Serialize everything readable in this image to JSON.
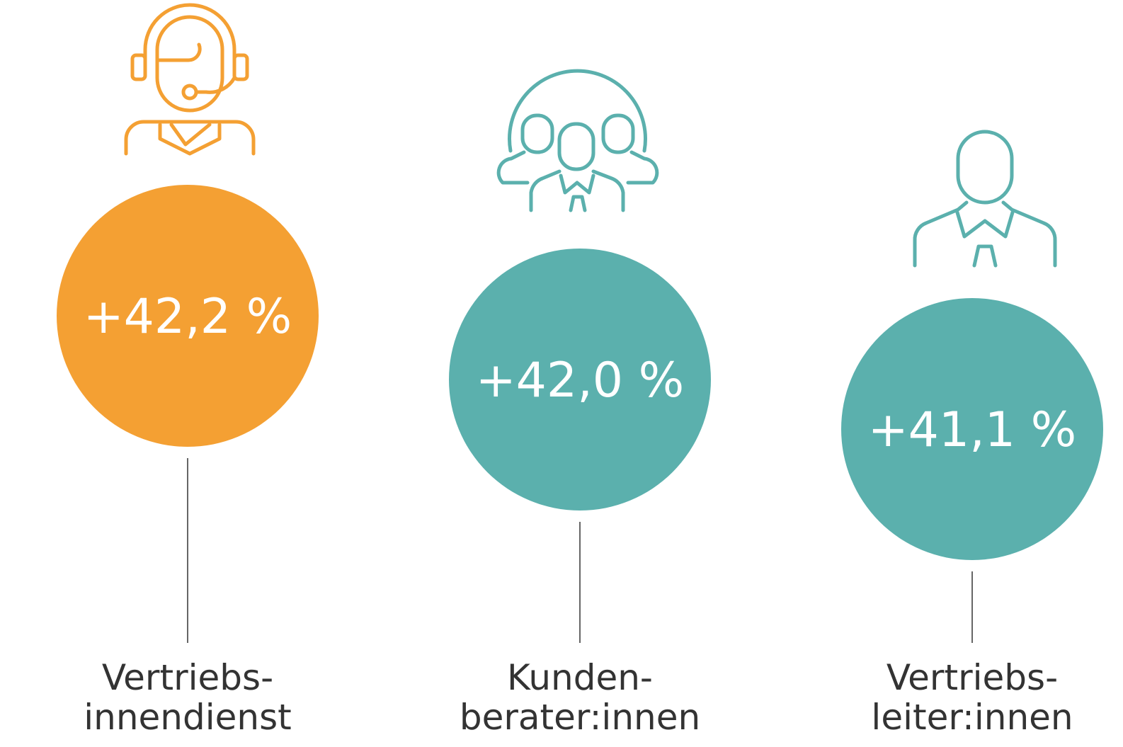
{
  "items": [
    {
      "value": "+42,2 %",
      "label": [
        "Vertriebs-",
        "innendienst"
      ],
      "color": "#f4a033"
    },
    {
      "value": "+42,0 %",
      "label": [
        "Kunden-",
        "berater:innen"
      ],
      "color": "#5bb0ad"
    },
    {
      "value": "+41,1 %",
      "label": [
        "Vertriebs-",
        "leiter:innen"
      ],
      "color": "#5bb0ad"
    }
  ]
}
